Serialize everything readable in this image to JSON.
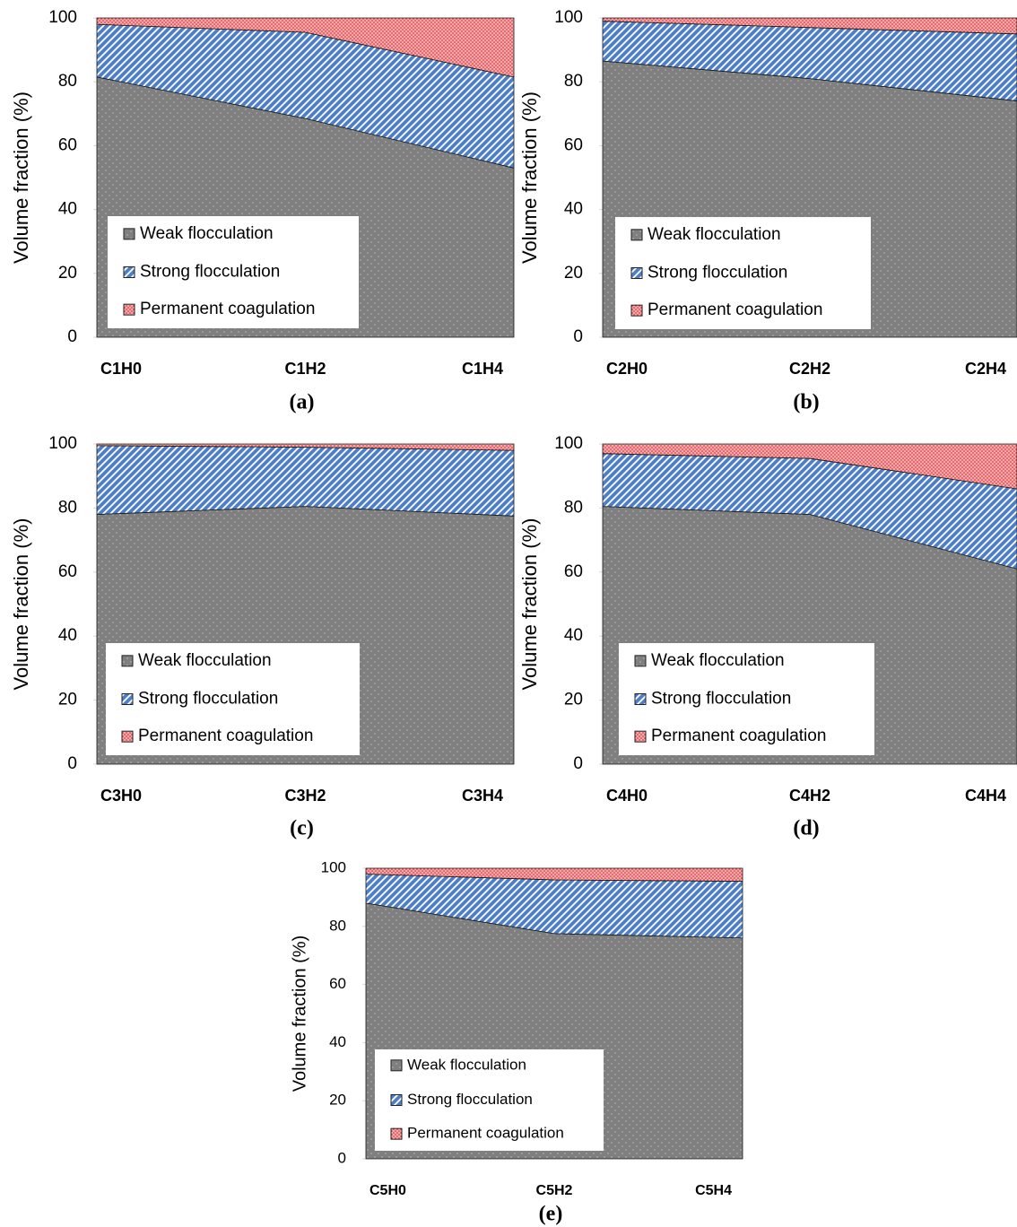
{
  "chart_data": [
    {
      "type": "area",
      "stacked": true,
      "label": "(a)",
      "ylabel": "Volume fraction (%)",
      "categories": [
        "C1H0",
        "C1H2",
        "C1H4"
      ],
      "series": [
        {
          "name": "Weak flocculation",
          "color": "#7f7f7f",
          "values": [
            81.5,
            68.5,
            53
          ]
        },
        {
          "name": "Strong flocculation",
          "color": "#4f7fc4",
          "values": [
            16.5,
            27,
            28.5
          ]
        },
        {
          "name": "Permanent coagulation",
          "color": "#f3a9a9",
          "values": [
            2,
            4.5,
            18.5
          ]
        }
      ],
      "ylim": [
        0,
        100
      ],
      "yticks": [
        0,
        20,
        40,
        60,
        80,
        100
      ],
      "legend": "lower left"
    },
    {
      "type": "area",
      "stacked": true,
      "label": "(b)",
      "ylabel": "Volume fraction (%)",
      "categories": [
        "C2H0",
        "C2H2",
        "C2H4"
      ],
      "series": [
        {
          "name": "Weak flocculation",
          "color": "#7f7f7f",
          "values": [
            86.5,
            81,
            74
          ]
        },
        {
          "name": "Strong flocculation",
          "color": "#4f7fc4",
          "values": [
            12.5,
            16,
            21
          ]
        },
        {
          "name": "Permanent coagulation",
          "color": "#f3a9a9",
          "values": [
            1,
            3,
            5
          ]
        }
      ],
      "ylim": [
        0,
        100
      ],
      "yticks": [
        0,
        20,
        40,
        60,
        80,
        100
      ],
      "legend": "lower left"
    },
    {
      "type": "area",
      "stacked": true,
      "label": "(c)",
      "ylabel": "Volume fraction (%)",
      "categories": [
        "C3H0",
        "C3H2",
        "C3H4"
      ],
      "series": [
        {
          "name": "Weak flocculation",
          "color": "#7f7f7f",
          "values": [
            78,
            80.5,
            77.5
          ]
        },
        {
          "name": "Strong flocculation",
          "color": "#4f7fc4",
          "values": [
            21.5,
            18.5,
            20.5
          ]
        },
        {
          "name": "Permanent coagulation",
          "color": "#f3a9a9",
          "values": [
            0.5,
            1,
            2
          ]
        }
      ],
      "ylim": [
        0,
        100
      ],
      "yticks": [
        0,
        20,
        40,
        60,
        80,
        100
      ],
      "legend": "lower left"
    },
    {
      "type": "area",
      "stacked": true,
      "label": "(d)",
      "ylabel": "Volume fraction (%)",
      "categories": [
        "C4H0",
        "C4H2",
        "C4H4"
      ],
      "series": [
        {
          "name": "Weak flocculation",
          "color": "#7f7f7f",
          "values": [
            80.5,
            78,
            61
          ]
        },
        {
          "name": "Strong flocculation",
          "color": "#4f7fc4",
          "values": [
            16.5,
            17.5,
            25
          ]
        },
        {
          "name": "Permanent coagulation",
          "color": "#f3a9a9",
          "values": [
            3,
            4.5,
            14
          ]
        }
      ],
      "ylim": [
        0,
        100
      ],
      "yticks": [
        0,
        20,
        40,
        60,
        80,
        100
      ],
      "legend": "lower left"
    },
    {
      "type": "area",
      "stacked": true,
      "label": "(e)",
      "ylabel": "Volume fraction (%)",
      "categories": [
        "C5H0",
        "C5H2",
        "C5H4"
      ],
      "series": [
        {
          "name": "Weak flocculation",
          "color": "#7f7f7f",
          "values": [
            88,
            77.5,
            76
          ]
        },
        {
          "name": "Strong flocculation",
          "color": "#4f7fc4",
          "values": [
            10,
            18.5,
            19.5
          ]
        },
        {
          "name": "Permanent coagulation",
          "color": "#f3a9a9",
          "values": [
            2,
            4,
            4.5
          ]
        }
      ],
      "ylim": [
        0,
        100
      ],
      "yticks": [
        0,
        20,
        40,
        60,
        80,
        100
      ],
      "legend": "lower left"
    }
  ]
}
